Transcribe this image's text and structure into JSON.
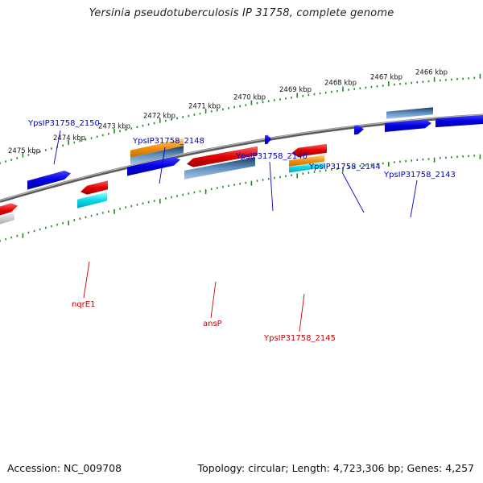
{
  "title": "Yersinia pseudotuberculosis IP 31758, complete genome",
  "footer": {
    "accession": "Accession: NC_009708",
    "topology": "Topology: circular; Length: 4,723,306 bp; Genes: 4,257"
  },
  "colors": {
    "backbone": "#808080",
    "ruler": "#1f8a1f",
    "cds_forward": "#1010e0",
    "cds_reverse": "#e01010",
    "gene_orange": "#f0a020",
    "gene_steel": "#5080b0",
    "gene_cyan": "#20d0e0",
    "gene_gray": "#c8c8c8",
    "label_forward": "#0000cc",
    "label_reverse": "#cc0000"
  },
  "kbp_labels": [
    "2475 kbp",
    "2474 kbp",
    "2473 kbp",
    "2472 kbp",
    "2471 kbp",
    "2470 kbp",
    "2469 kbp",
    "2468 kbp",
    "2467 kbp",
    "2466 kbp"
  ],
  "forward_gene_labels": [
    "YpsIP31758_2150",
    "YpsIP31758_2148",
    "YpsIP31758_2146",
    "YpsIP31758_2144",
    "YpsIP31758_2143"
  ],
  "reverse_gene_labels": [
    "nqrE1",
    "ansP",
    "YpsIP31758_2145"
  ]
}
